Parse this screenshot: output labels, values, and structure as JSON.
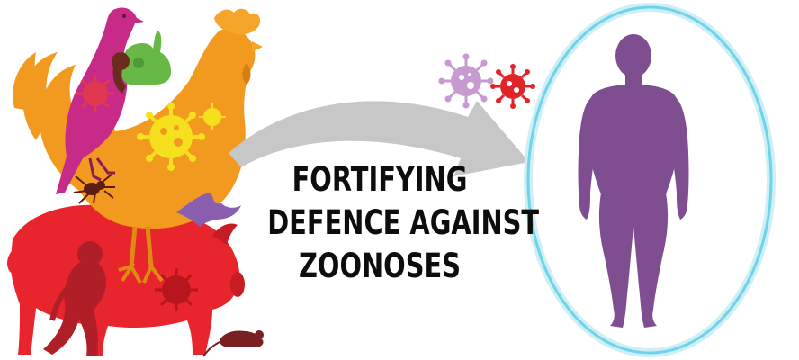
{
  "headline": {
    "line1": "FORTIFYING",
    "line2": "DEFENCE AGAINST",
    "line3": "ZOONOSES"
  },
  "colors": {
    "pig": "#e8242c",
    "rooster": "#f29a1f",
    "rooster_comb": "#f4a52a",
    "pigeon": "#c72a87",
    "rabbit": "#67b847",
    "bat": "#8b5fb0",
    "monkey": "#b01f28",
    "virus_yellow": "#f4e01d",
    "virus_purple": "#c79ad0",
    "virus_red": "#e0242a",
    "arrow": "#c7c7c7",
    "human": "#7e4e91",
    "shield": "#6fd4ea",
    "text": "#0d0d0d"
  },
  "icons": [
    "pig-icon",
    "rooster-icon",
    "pigeon-icon",
    "rabbit-icon",
    "bat-icon",
    "spider-icon",
    "monkey-icon",
    "rat-icon",
    "virus-icon",
    "arrow-icon",
    "human-figure-icon",
    "shield-oval-icon"
  ]
}
